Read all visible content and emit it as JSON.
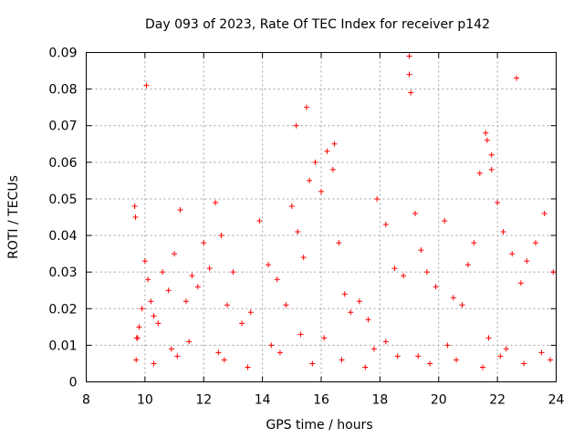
{
  "chart_data": {
    "type": "scatter",
    "title": "Day 093 of 2023, Rate Of TEC Index for receiver p142",
    "xlabel": "GPS time / hours",
    "ylabel": "ROTI / TECUs",
    "xlim": [
      8,
      24
    ],
    "ylim": [
      0,
      0.09
    ],
    "xticks": [
      8,
      10,
      12,
      14,
      16,
      18,
      20,
      22,
      24
    ],
    "xtick_labels": [
      "8",
      "10",
      "12",
      "14",
      "16",
      "18",
      "20",
      "22",
      "24"
    ],
    "yticks": [
      0,
      0.01,
      0.02,
      0.03,
      0.04,
      0.05,
      0.06,
      0.07,
      0.08,
      0.09
    ],
    "ytick_labels": [
      "0",
      "0.01",
      "0.02",
      "0.03",
      "0.04",
      "0.05",
      "0.06",
      "0.07",
      "0.08",
      "0.09"
    ],
    "grid": true,
    "marker": "plus",
    "color": "#ff0000",
    "series": [
      {
        "name": "ROTI",
        "x": [
          9.65,
          9.68,
          9.72,
          9.8,
          9.9,
          10.0,
          10.1,
          10.2,
          10.3,
          10.45,
          10.6,
          10.8,
          11.0,
          11.2,
          11.4,
          11.6,
          11.8,
          12.0,
          12.2,
          12.4,
          12.6,
          12.8,
          13.0,
          13.3,
          13.6,
          13.9,
          14.2,
          14.5,
          14.8,
          15.0,
          15.2,
          15.4,
          15.6,
          15.8,
          16.0,
          16.2,
          16.4,
          16.6,
          16.8,
          17.0,
          17.3,
          17.6,
          17.9,
          18.2,
          18.5,
          18.8,
          19.0,
          19.2,
          19.4,
          19.6,
          19.9,
          20.2,
          20.5,
          20.8,
          21.0,
          21.2,
          21.4,
          21.6,
          21.8,
          22.0,
          22.2,
          22.5,
          22.8,
          23.0,
          23.3,
          23.6,
          23.9,
          10.05,
          15.15,
          15.5,
          16.45,
          19.0,
          19.05,
          21.65,
          21.8,
          22.65,
          9.75,
          10.9,
          11.5,
          12.5,
          14.3,
          15.3,
          16.1,
          17.8,
          18.2,
          19.3,
          20.3,
          21.7,
          22.3,
          23.5,
          9.7,
          10.3,
          11.1,
          12.7,
          13.5,
          14.6,
          15.7,
          16.7,
          17.5,
          18.6,
          19.7,
          20.6,
          21.5,
          22.1,
          22.9,
          23.8
        ],
        "y": [
          0.048,
          0.045,
          0.012,
          0.015,
          0.02,
          0.033,
          0.028,
          0.022,
          0.018,
          0.016,
          0.03,
          0.025,
          0.035,
          0.047,
          0.022,
          0.029,
          0.026,
          0.038,
          0.031,
          0.049,
          0.04,
          0.021,
          0.03,
          0.016,
          0.019,
          0.044,
          0.032,
          0.028,
          0.021,
          0.048,
          0.041,
          0.034,
          0.055,
          0.06,
          0.052,
          0.063,
          0.058,
          0.038,
          0.024,
          0.019,
          0.022,
          0.017,
          0.05,
          0.043,
          0.031,
          0.029,
          0.089,
          0.046,
          0.036,
          0.03,
          0.026,
          0.044,
          0.023,
          0.021,
          0.032,
          0.038,
          0.057,
          0.068,
          0.062,
          0.049,
          0.041,
          0.035,
          0.027,
          0.033,
          0.038,
          0.046,
          0.03,
          0.081,
          0.07,
          0.075,
          0.065,
          0.084,
          0.079,
          0.066,
          0.058,
          0.083,
          0.012,
          0.009,
          0.011,
          0.008,
          0.01,
          0.013,
          0.012,
          0.009,
          0.011,
          0.007,
          0.01,
          0.012,
          0.009,
          0.008,
          0.006,
          0.005,
          0.007,
          0.006,
          0.004,
          0.008,
          0.005,
          0.006,
          0.004,
          0.007,
          0.005,
          0.006,
          0.004,
          0.007,
          0.005,
          0.006
        ]
      }
    ]
  }
}
